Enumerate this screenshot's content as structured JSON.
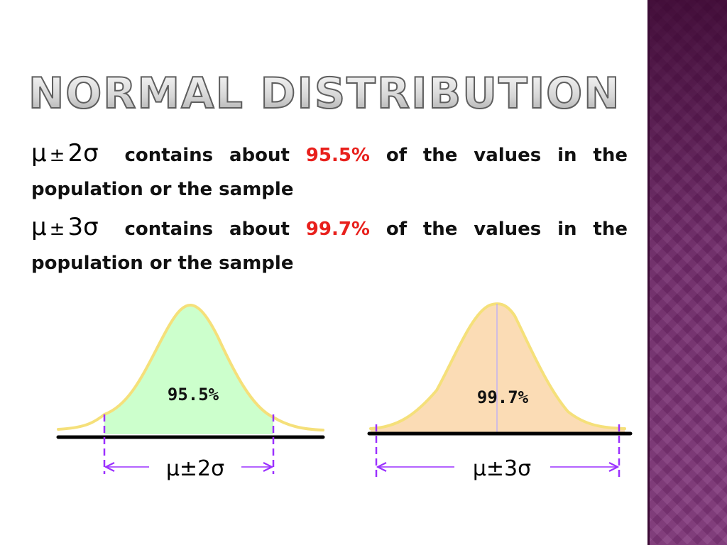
{
  "title": "NORMAL DISTRIBUTION",
  "bullets": [
    {
      "mu": "μ",
      "pm": "±",
      "k_sigma": "2σ",
      "text_before": "contains about",
      "percent": "95.5%",
      "text_after": "of the values in the population or the sample"
    },
    {
      "mu": "μ",
      "pm": "±",
      "k_sigma": "3σ",
      "text_before": "contains about",
      "percent": "99.7%",
      "text_after": "of the values in the population or the sample"
    }
  ],
  "figures": [
    {
      "area_label": "95.5%",
      "range_label": "μ±2σ",
      "fill_color": "#ccffcc",
      "curve_color": "#f5e07a"
    },
    {
      "area_label": "99.7%",
      "range_label": "μ±3σ",
      "fill_color": "#fbdcb5",
      "curve_color": "#f5e07a"
    }
  ],
  "colors": {
    "accent_red": "#e8201c",
    "marker_purple": "#9b30ff",
    "side_panel": "#6a2a66"
  }
}
